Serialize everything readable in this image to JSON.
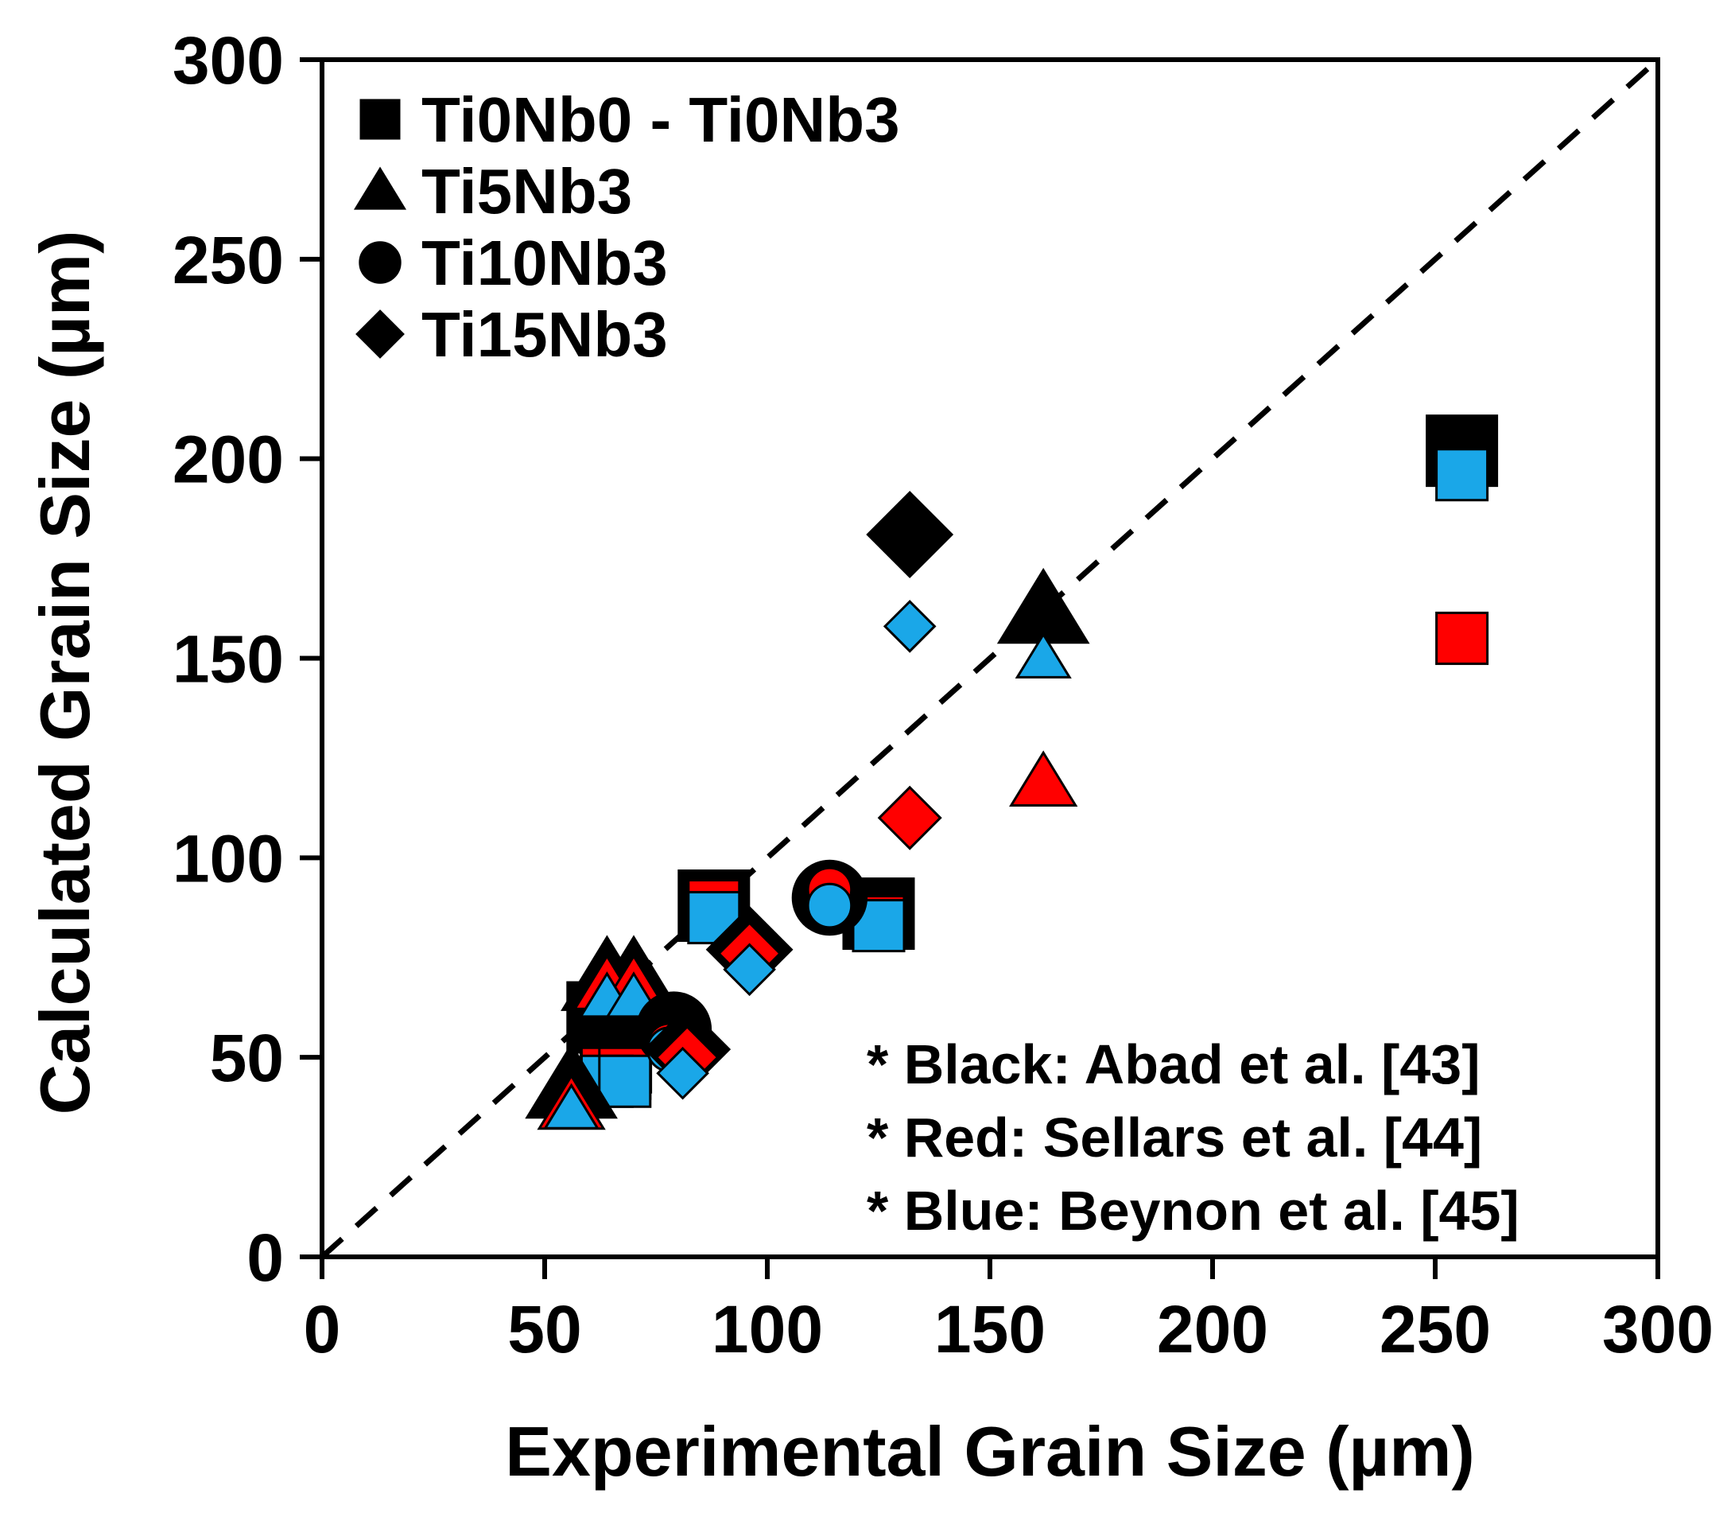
{
  "chart_data": {
    "type": "scatter",
    "title": "",
    "xlabel": "Experimental Grain Size (µm)",
    "ylabel": "Calculated Grain Size (µm)",
    "xlim": [
      0,
      300
    ],
    "ylim": [
      0,
      300
    ],
    "xticks": [
      "0",
      "50",
      "100",
      "150",
      "200",
      "250",
      "300"
    ],
    "yticks": [
      "0",
      "50",
      "100",
      "150",
      "200",
      "250",
      "300"
    ],
    "xtick_values": [
      0,
      50,
      100,
      150,
      200,
      250,
      300
    ],
    "ytick_values": [
      0,
      50,
      100,
      150,
      200,
      250,
      300
    ],
    "grid": false,
    "reference_line": {
      "type": "dashed",
      "label": "",
      "from": [
        0,
        0
      ],
      "to": [
        300,
        300
      ]
    },
    "legend": {
      "position": "top-left",
      "entries": [
        {
          "label": "Ti0Nb0 - Ti0Nb3",
          "marker": "square"
        },
        {
          "label": "Ti5Nb3",
          "marker": "triangle"
        },
        {
          "label": "Ti10Nb3",
          "marker": "circle"
        },
        {
          "label": "Ti15Nb3",
          "marker": "diamond"
        }
      ]
    },
    "annotations": [
      "* Black: Abad et al. [43]",
      "* Red: Sellars et al. [44]",
      "* Blue: Beynon et al. [45]"
    ],
    "colors": {
      "black": "#000000",
      "red": "#ff0000",
      "blue": "#1aa7e8"
    },
    "series": [
      {
        "name": "Ti0Nb0 - Ti0Nb3 (Black)",
        "marker": "square",
        "color": "black",
        "size": "large",
        "points": [
          [
            63,
            60
          ],
          [
            66,
            50
          ],
          [
            88,
            88
          ],
          [
            125,
            86
          ],
          [
            256,
            202
          ]
        ]
      },
      {
        "name": "Ti0Nb0 - Ti0Nb3 (Red)",
        "marker": "square",
        "color": "red",
        "size": "medium",
        "points": [
          [
            64,
            46
          ],
          [
            68,
            46
          ],
          [
            88,
            88
          ],
          [
            125,
            84
          ],
          [
            256,
            155
          ]
        ]
      },
      {
        "name": "Ti0Nb0 - Ti0Nb3 (Blue)",
        "marker": "square",
        "color": "blue",
        "size": "medium",
        "points": [
          [
            64,
            44
          ],
          [
            68,
            44
          ],
          [
            88,
            85
          ],
          [
            125,
            83
          ],
          [
            256,
            196
          ]
        ]
      },
      {
        "name": "Ti5Nb3 (Black)",
        "marker": "triangle",
        "color": "black",
        "size": "large",
        "points": [
          [
            56,
            43
          ],
          [
            64,
            70
          ],
          [
            70,
            70
          ],
          [
            162,
            162
          ]
        ]
      },
      {
        "name": "Ti5Nb3 (Red)",
        "marker": "triangle",
        "color": "red",
        "size": "medium",
        "points": [
          [
            56,
            38
          ],
          [
            64,
            68
          ],
          [
            70,
            68
          ],
          [
            162,
            119
          ]
        ]
      },
      {
        "name": "Ti5Nb3 (Blue)",
        "marker": "triangle",
        "color": "blue",
        "size": "small",
        "points": [
          [
            56,
            37
          ],
          [
            64,
            65
          ],
          [
            70,
            65
          ],
          [
            162,
            150
          ]
        ]
      },
      {
        "name": "Ti10Nb3 (Black)",
        "marker": "circle",
        "color": "black",
        "size": "large",
        "points": [
          [
            79,
            57
          ],
          [
            114,
            90
          ]
        ]
      },
      {
        "name": "Ti10Nb3 (Red)",
        "marker": "circle",
        "color": "red",
        "size": "small",
        "points": [
          [
            78,
            53
          ],
          [
            114,
            92
          ]
        ]
      },
      {
        "name": "Ti10Nb3 (Blue)",
        "marker": "circle",
        "color": "blue",
        "size": "small",
        "points": [
          [
            78,
            52
          ],
          [
            114,
            88
          ]
        ]
      },
      {
        "name": "Ti15Nb3 (Black)",
        "marker": "diamond",
        "color": "black",
        "size": "large",
        "points": [
          [
            82,
            52
          ],
          [
            96,
            77
          ],
          [
            132,
            181
          ]
        ]
      },
      {
        "name": "Ti15Nb3 (Red)",
        "marker": "diamond",
        "color": "red",
        "size": "medium",
        "points": [
          [
            82,
            50
          ],
          [
            96,
            76
          ],
          [
            132,
            110
          ]
        ]
      },
      {
        "name": "Ti15Nb3 (Blue)",
        "marker": "diamond",
        "color": "blue",
        "size": "small",
        "points": [
          [
            81,
            46
          ],
          [
            96,
            72
          ],
          [
            132,
            158
          ]
        ]
      }
    ]
  }
}
